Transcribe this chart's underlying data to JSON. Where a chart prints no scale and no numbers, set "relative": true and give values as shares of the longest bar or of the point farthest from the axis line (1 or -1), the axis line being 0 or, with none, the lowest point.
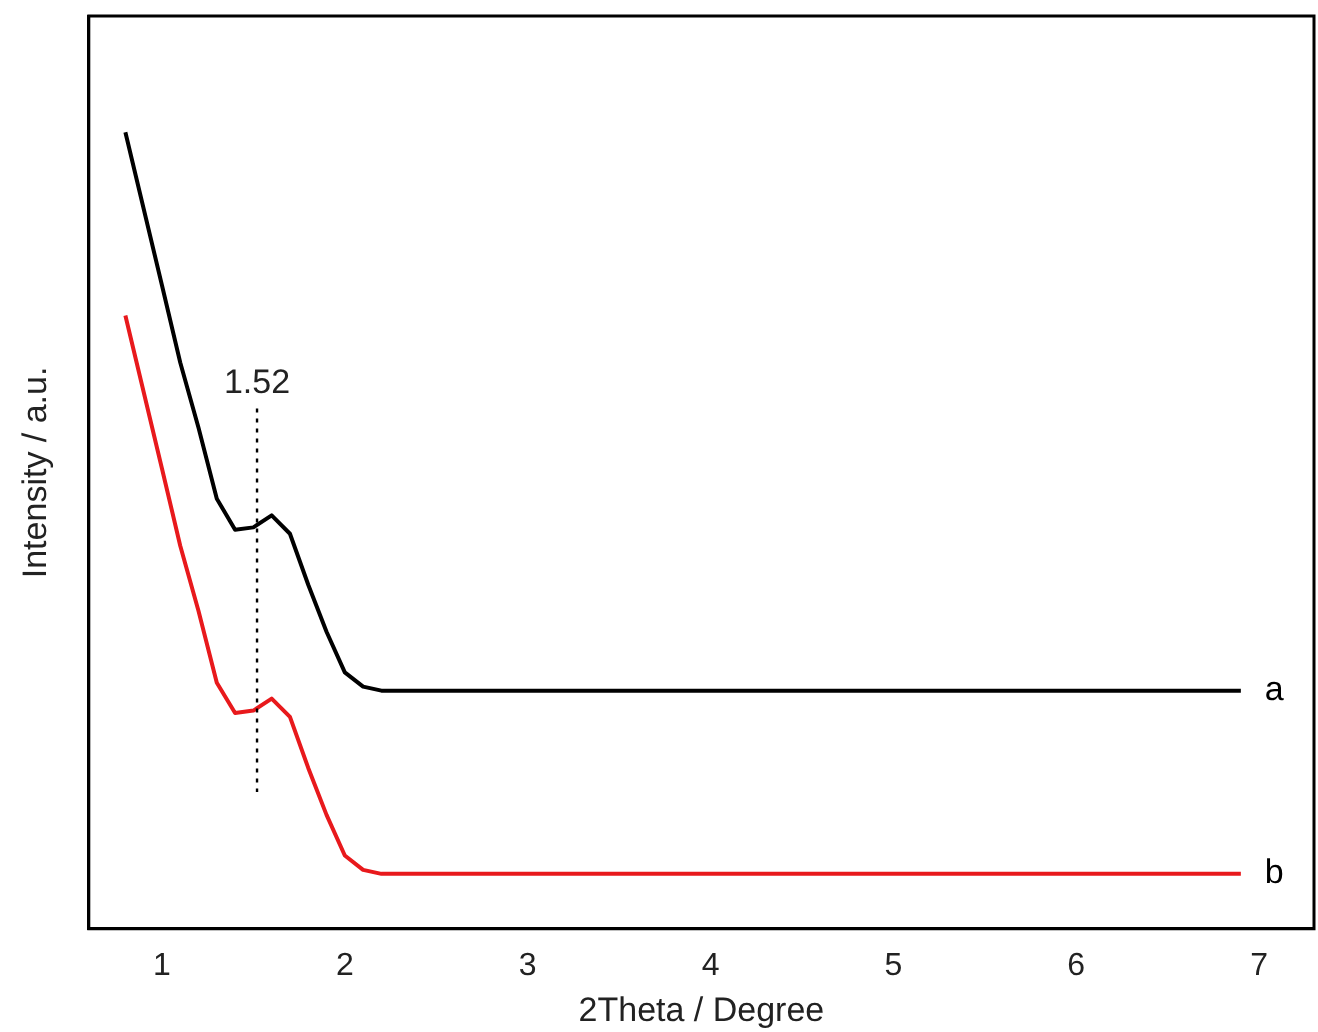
{
  "chart_data": {
    "type": "line",
    "relative": true,
    "xlabel": "2Theta / Degree",
    "ylabel": "Intensity / a.u.",
    "xlim": [
      0.6,
      7.3
    ],
    "xticks": [
      1,
      2,
      3,
      4,
      5,
      6,
      7
    ],
    "grid": false,
    "legend": false,
    "marker": "none",
    "line_style": "solid",
    "x": [
      0.8,
      1.0,
      1.1,
      1.2,
      1.3,
      1.4,
      1.5,
      1.6,
      1.7,
      1.8,
      1.9,
      2.0,
      2.1,
      2.2,
      2.5,
      6.9
    ],
    "series": [
      {
        "name": "a",
        "color": "#000000",
        "values": [
          1,
          0.808,
          0.711,
          0.629,
          0.54,
          0.501,
          0.504,
          0.519,
          0.496,
          0.432,
          0.373,
          0.322,
          0.304,
          0.299,
          0.299,
          0.299
        ]
      },
      {
        "name": "b",
        "color": "#e8191c",
        "values": [
          0.77,
          0.578,
          0.481,
          0.399,
          0.309,
          0.271,
          0.274,
          0.289,
          0.266,
          0.202,
          0.143,
          0.092,
          0.074,
          0.069,
          0.069,
          0.069
        ]
      }
    ],
    "ref_lines": [
      {
        "axis": "x",
        "value": 1.52,
        "label": "1.52",
        "line_style": "dotted",
        "color": "#000000"
      }
    ]
  }
}
